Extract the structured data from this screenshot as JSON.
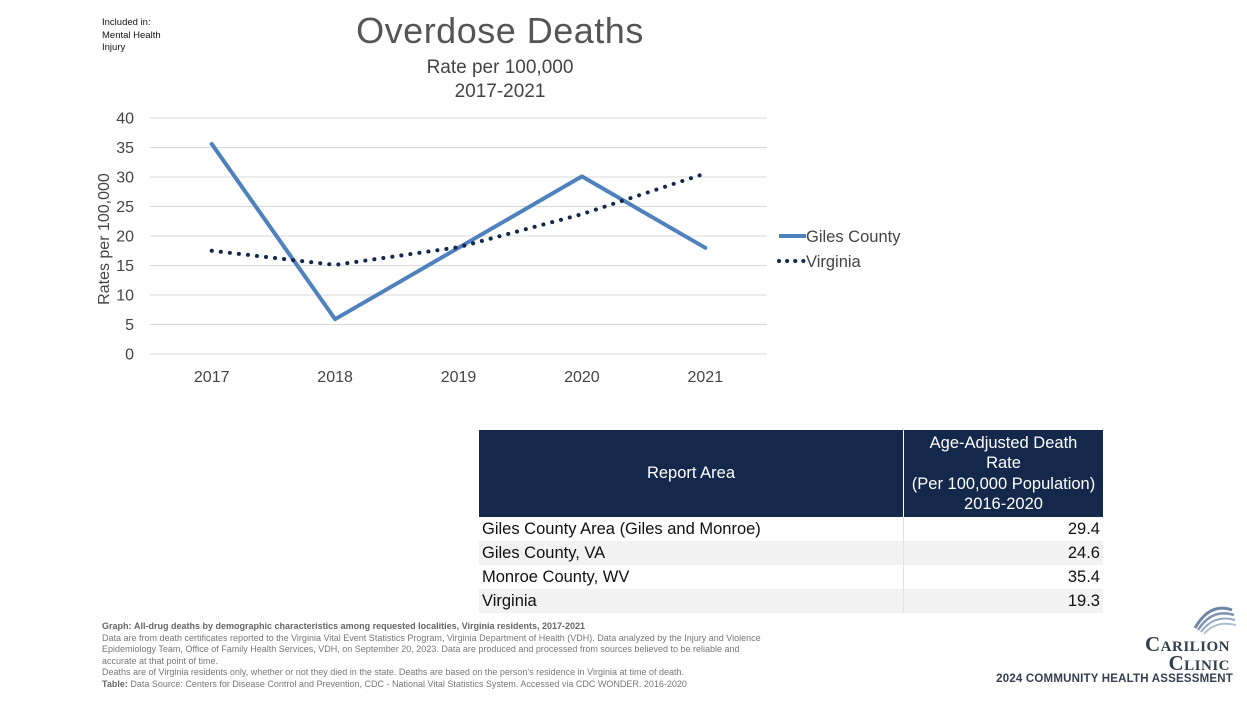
{
  "tag": {
    "line1": "Included in:",
    "line2": "Mental Health",
    "line3": "Injury"
  },
  "chart_data": {
    "type": "line",
    "title": "Overdose Deaths",
    "subtitle1": "Rate per 100,000",
    "subtitle2": "2017-2021",
    "xlabel": "",
    "ylabel": "Rates per 100,000",
    "ylim": [
      0,
      40
    ],
    "yticks": [
      0,
      5,
      10,
      15,
      20,
      25,
      30,
      35,
      40
    ],
    "categories": [
      "2017",
      "2018",
      "2019",
      "2020",
      "2021"
    ],
    "series": [
      {
        "name": "Giles County",
        "values": [
          35.6,
          5.9,
          18.0,
          30.1,
          18.0
        ],
        "color": "#4f81bd",
        "style": "solid"
      },
      {
        "name": "Virginia",
        "values": [
          17.5,
          15.1,
          18.1,
          23.7,
          30.6
        ],
        "color": "#13284b",
        "style": "dotted"
      }
    ],
    "legend_position": "right",
    "grid": true
  },
  "table": {
    "header_area": "Report Area",
    "header_rate_lines": [
      "Age-Adjusted Death",
      "Rate",
      "(Per 100,000 Population)",
      "2016-2020"
    ],
    "rows": [
      {
        "area": "Giles County Area (Giles and Monroe)",
        "rate": "29.4"
      },
      {
        "area": "Giles County, VA",
        "rate": "24.6"
      },
      {
        "area": "Monroe County, WV",
        "rate": "35.4"
      },
      {
        "area": "Virginia",
        "rate": "19.3"
      }
    ]
  },
  "notes": {
    "graph_label": "Graph:",
    "graph_text": "All-drug deaths by demographic characteristics among requested localities, Virginia residents, 2017-2021",
    "line2": "Data are from death certificates reported to the Virginia Vital Event Statistics Program, Virginia Department of Health (VDH). Data analyzed by the Injury and Violence",
    "line3": "Epidemiology Team, Office of Family Health Services, VDH, on September 20, 2023. Data are produced and processed from sources believed to be reliable and",
    "line4": "accurate at that point of time.",
    "line5": "Deaths are of Virginia residents only, whether or not they died in the state. Deaths are based on the person's residence in Virginia at time of death.",
    "table_label": "Table:",
    "table_text": "Data Source: Centers for Disease Control and Prevention, CDC - National Vital Statistics System. Accessed via CDC WONDER. 2016-2020"
  },
  "branding": {
    "logo_line1": "Carilion",
    "logo_line2": "Clinic",
    "assessment": "2024 COMMUNITY HEALTH ASSESSMENT",
    "logo_color": "#333f4f"
  }
}
